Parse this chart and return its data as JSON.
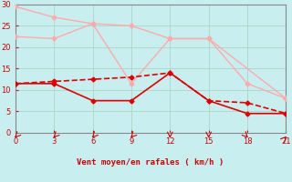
{
  "xlabel": "Vent moyen/en rafales ( km/h )",
  "background_color": "#c8eef0",
  "grid_color": "#b0d8cc",
  "axis_color": "#888888",
  "xlim": [
    0,
    21
  ],
  "ylim": [
    0,
    30
  ],
  "xticks": [
    0,
    3,
    6,
    9,
    12,
    15,
    18,
    21
  ],
  "yticks": [
    0,
    5,
    10,
    15,
    20,
    25,
    30
  ],
  "series": [
    {
      "x": [
        0,
        3,
        6,
        9,
        12,
        15,
        21
      ],
      "y": [
        29.5,
        27.0,
        25.5,
        25.0,
        22.0,
        22.0,
        8.0
      ],
      "color": "#ffaaaa",
      "linewidth": 1.0,
      "marker": "D",
      "markersize": 2.5,
      "linestyle": "-"
    },
    {
      "x": [
        0,
        3,
        6,
        9,
        12,
        15,
        18,
        21
      ],
      "y": [
        22.5,
        22.0,
        25.5,
        11.5,
        22.0,
        22.0,
        11.5,
        8.0
      ],
      "color": "#ffaaaa",
      "linewidth": 1.0,
      "marker": "D",
      "markersize": 2.5,
      "linestyle": "-"
    },
    {
      "x": [
        0,
        3,
        6,
        9,
        12,
        15,
        18,
        21
      ],
      "y": [
        11.5,
        11.5,
        7.5,
        7.5,
        14.0,
        7.5,
        4.5,
        4.5
      ],
      "color": "#dd0000",
      "linewidth": 1.2,
      "marker": "D",
      "markersize": 2.5,
      "linestyle": "-"
    },
    {
      "x": [
        0,
        3,
        6,
        9,
        12,
        15,
        18,
        21
      ],
      "y": [
        11.5,
        12.0,
        12.5,
        13.0,
        14.0,
        7.5,
        7.0,
        4.5
      ],
      "color": "#dd0000",
      "linewidth": 1.2,
      "marker": "D",
      "markersize": 2.5,
      "linestyle": "--"
    }
  ],
  "wind_arrows_x": [
    0,
    3,
    6,
    9,
    12,
    15,
    18,
    21
  ],
  "arrow_color": "#cc0000",
  "arrow_directions": [
    225,
    225,
    225,
    225,
    270,
    270,
    315,
    45
  ]
}
